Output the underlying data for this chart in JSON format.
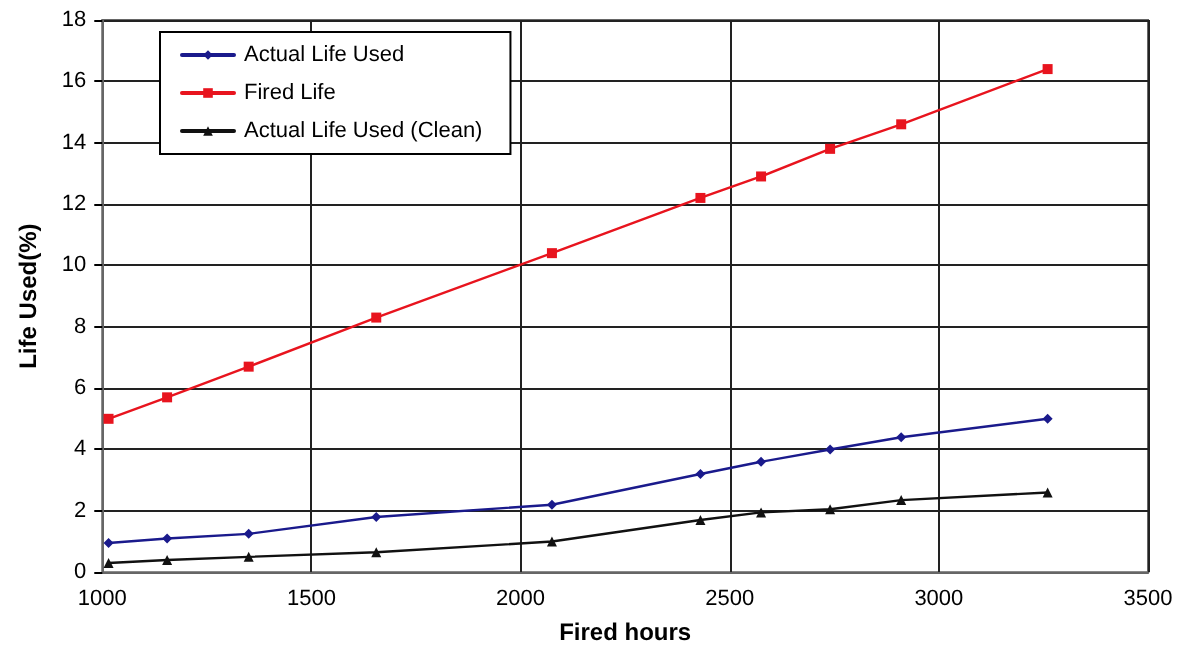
{
  "chart_data": {
    "type": "line",
    "xlabel": "Fired hours",
    "ylabel": "Life Used(%)",
    "xlim": [
      1000,
      3500
    ],
    "xticks": [
      1000,
      1500,
      2000,
      2500,
      3000,
      3500
    ],
    "ylim": [
      0,
      18
    ],
    "yticks": [
      0,
      2,
      4,
      6,
      8,
      10,
      12,
      14,
      16,
      18
    ],
    "grid": true,
    "legend": "top left",
    "line_style": "solid",
    "x": [
      1015,
      1155,
      1350,
      1655,
      2075,
      2430,
      2575,
      2740,
      2910,
      3260
    ],
    "series": [
      {
        "name": "Actual Life Used",
        "color": "#1a1a8c",
        "marker": "diamond",
        "values": [
          0.95,
          1.1,
          1.25,
          1.8,
          2.2,
          3.2,
          3.6,
          4.0,
          4.4,
          5.0
        ]
      },
      {
        "name": "Fired Life",
        "color": "#e8141e",
        "marker": "square",
        "values": [
          5.0,
          5.7,
          6.7,
          8.3,
          10.4,
          12.2,
          12.9,
          13.8,
          14.6,
          16.4
        ]
      },
      {
        "name": "Actual Life Used (Clean)",
        "color": "#111111",
        "marker": "triangle",
        "values": [
          0.3,
          0.4,
          0.5,
          0.65,
          1.0,
          1.7,
          1.95,
          2.05,
          2.35,
          2.6
        ]
      }
    ]
  }
}
